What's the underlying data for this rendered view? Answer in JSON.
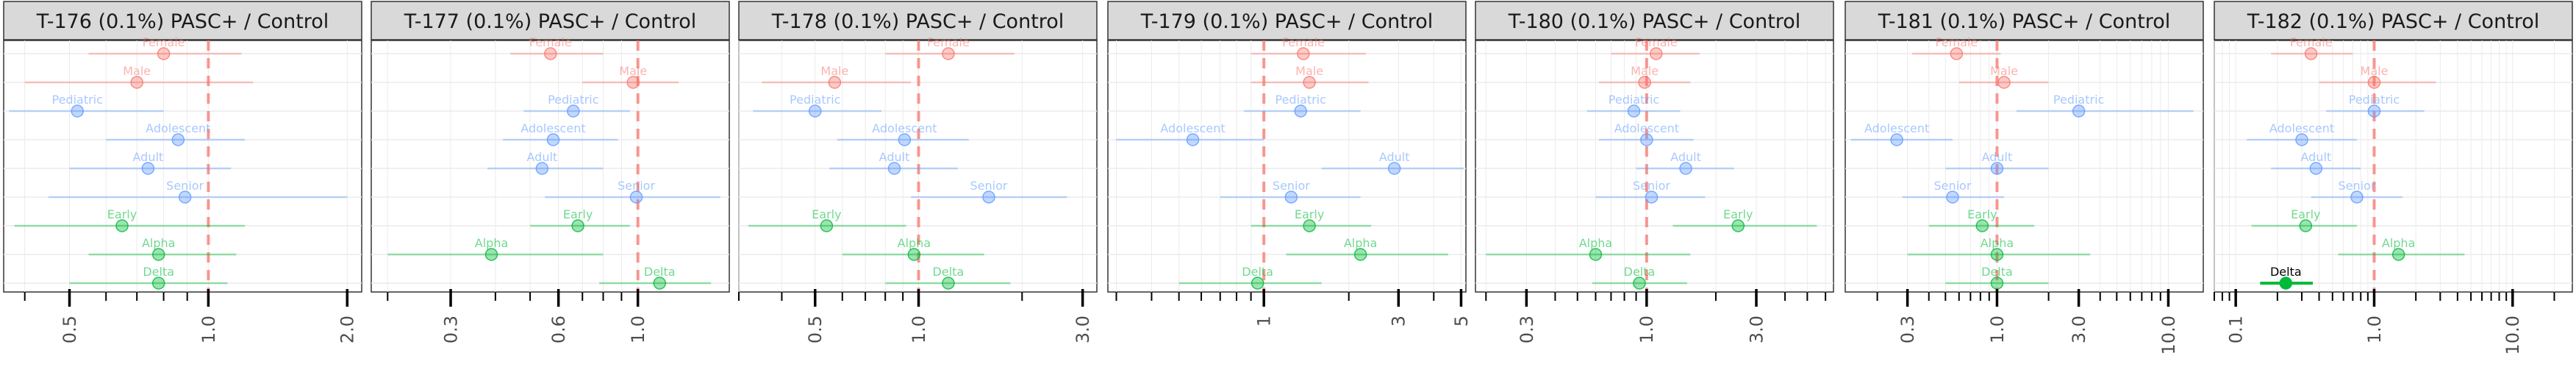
{
  "colors": {
    "strip_fill": "#d9d9d9",
    "strip_border": "#333333",
    "grid": "#ebebeb",
    "axis": "#000000",
    "reference_line": "#f8766d",
    "sex": "#f8766d",
    "age": "#619cff",
    "variant": "#00ba38"
  },
  "chart_data": [
    {
      "type": "forest",
      "title": "T-176 (0.1%) PASC+ / Control",
      "xscale": "log",
      "xlim": [
        0.36,
        2.15
      ],
      "xticks": [
        0.5,
        1.0,
        2.0
      ],
      "xtick_labels": [
        "0.5",
        "1.0",
        "2.0"
      ],
      "reference": 1.0,
      "rows": [
        {
          "label": "Female",
          "group": "sex",
          "est": 0.8,
          "lo": 0.55,
          "hi": 1.18
        },
        {
          "label": "Male",
          "group": "sex",
          "est": 0.7,
          "lo": 0.4,
          "hi": 1.25
        },
        {
          "label": "Pediatric",
          "group": "age",
          "est": 0.52,
          "lo": 0.37,
          "hi": 0.8
        },
        {
          "label": "Adolescent",
          "group": "age",
          "est": 0.86,
          "lo": 0.6,
          "hi": 1.2
        },
        {
          "label": "Adult",
          "group": "age",
          "est": 0.74,
          "lo": 0.5,
          "hi": 1.12
        },
        {
          "label": "Senior",
          "group": "age",
          "est": 0.89,
          "lo": 0.45,
          "hi": 2.0
        },
        {
          "label": "Early",
          "group": "variant",
          "est": 0.65,
          "lo": 0.38,
          "hi": 1.2
        },
        {
          "label": "Alpha",
          "group": "variant",
          "est": 0.78,
          "lo": 0.55,
          "hi": 1.15
        },
        {
          "label": "Delta",
          "group": "variant",
          "est": 0.78,
          "lo": 0.5,
          "hi": 1.1
        }
      ]
    },
    {
      "type": "forest",
      "title": "T-177 (0.1%) PASC+ / Control",
      "xscale": "log",
      "xlim": [
        0.18,
        1.8
      ],
      "xticks": [
        0.3,
        0.6,
        1.0
      ],
      "xtick_labels": [
        "0.3",
        "0.6",
        "1.0"
      ],
      "reference": 1.0,
      "rows": [
        {
          "label": "Female",
          "group": "sex",
          "est": 0.57,
          "lo": 0.44,
          "hi": 0.8
        },
        {
          "label": "Male",
          "group": "sex",
          "est": 0.97,
          "lo": 0.7,
          "hi": 1.3
        },
        {
          "label": "Pediatric",
          "group": "age",
          "est": 0.66,
          "lo": 0.48,
          "hi": 0.95
        },
        {
          "label": "Adolescent",
          "group": "age",
          "est": 0.58,
          "lo": 0.42,
          "hi": 0.88
        },
        {
          "label": "Adult",
          "group": "age",
          "est": 0.54,
          "lo": 0.38,
          "hi": 0.8
        },
        {
          "label": "Senior",
          "group": "age",
          "est": 0.99,
          "lo": 0.55,
          "hi": 1.7
        },
        {
          "label": "Early",
          "group": "variant",
          "est": 0.68,
          "lo": 0.5,
          "hi": 0.95
        },
        {
          "label": "Alpha",
          "group": "variant",
          "est": 0.39,
          "lo": 0.2,
          "hi": 0.8
        },
        {
          "label": "Delta",
          "group": "variant",
          "est": 1.15,
          "lo": 0.78,
          "hi": 1.6
        }
      ]
    },
    {
      "type": "forest",
      "title": "T-178 (0.1%) PASC+ / Control",
      "xscale": "log",
      "xlim": [
        0.3,
        3.3
      ],
      "xticks": [
        0.5,
        1.0,
        3.0
      ],
      "xtick_labels": [
        "0.5",
        "1.0",
        "3.0"
      ],
      "reference": 1.0,
      "rows": [
        {
          "label": "Female",
          "group": "sex",
          "est": 1.22,
          "lo": 0.8,
          "hi": 1.9
        },
        {
          "label": "Male",
          "group": "sex",
          "est": 0.57,
          "lo": 0.35,
          "hi": 0.95
        },
        {
          "label": "Pediatric",
          "group": "age",
          "est": 0.5,
          "lo": 0.33,
          "hi": 0.78
        },
        {
          "label": "Adolescent",
          "group": "age",
          "est": 0.91,
          "lo": 0.58,
          "hi": 1.4
        },
        {
          "label": "Adult",
          "group": "age",
          "est": 0.85,
          "lo": 0.55,
          "hi": 1.3
        },
        {
          "label": "Senior",
          "group": "age",
          "est": 1.6,
          "lo": 0.95,
          "hi": 2.7
        },
        {
          "label": "Early",
          "group": "variant",
          "est": 0.54,
          "lo": 0.32,
          "hi": 0.92
        },
        {
          "label": "Alpha",
          "group": "variant",
          "est": 0.97,
          "lo": 0.6,
          "hi": 1.55
        },
        {
          "label": "Delta",
          "group": "variant",
          "est": 1.22,
          "lo": 0.8,
          "hi": 1.85
        }
      ]
    },
    {
      "type": "forest",
      "title": "T-179 (0.1%) PASC+ / Control",
      "xscale": "log",
      "xlim": [
        0.28,
        5.2
      ],
      "xticks": [
        1,
        3,
        5
      ],
      "xtick_labels": [
        "1",
        "3",
        "5"
      ],
      "reference": 1.0,
      "rows": [
        {
          "label": "Female",
          "group": "sex",
          "est": 1.38,
          "lo": 0.9,
          "hi": 2.3
        },
        {
          "label": "Male",
          "group": "sex",
          "est": 1.45,
          "lo": 0.9,
          "hi": 2.35
        },
        {
          "label": "Pediatric",
          "group": "age",
          "est": 1.35,
          "lo": 0.85,
          "hi": 2.2
        },
        {
          "label": "Adolescent",
          "group": "age",
          "est": 0.56,
          "lo": 0.3,
          "hi": 1.0
        },
        {
          "label": "Adult",
          "group": "age",
          "est": 2.9,
          "lo": 1.6,
          "hi": 5.1
        },
        {
          "label": "Senior",
          "group": "age",
          "est": 1.25,
          "lo": 0.7,
          "hi": 2.2
        },
        {
          "label": "Early",
          "group": "variant",
          "est": 1.45,
          "lo": 0.9,
          "hi": 2.4
        },
        {
          "label": "Alpha",
          "group": "variant",
          "est": 2.2,
          "lo": 1.2,
          "hi": 4.5
        },
        {
          "label": "Delta",
          "group": "variant",
          "est": 0.95,
          "lo": 0.5,
          "hi": 1.6
        }
      ]
    },
    {
      "type": "forest",
      "title": "T-180 (0.1%) PASC+ / Control",
      "xscale": "log",
      "xlim": [
        0.18,
        6.5
      ],
      "xticks": [
        0.3,
        1.0,
        3.0
      ],
      "xtick_labels": [
        "0.3",
        "1.0",
        "3.0"
      ],
      "reference": 1.0,
      "rows": [
        {
          "label": "Female",
          "group": "sex",
          "est": 1.1,
          "lo": 0.7,
          "hi": 1.7
        },
        {
          "label": "Male",
          "group": "sex",
          "est": 0.98,
          "lo": 0.62,
          "hi": 1.55
        },
        {
          "label": "Pediatric",
          "group": "age",
          "est": 0.88,
          "lo": 0.55,
          "hi": 1.4
        },
        {
          "label": "Adolescent",
          "group": "age",
          "est": 1.0,
          "lo": 0.62,
          "hi": 1.6
        },
        {
          "label": "Adult",
          "group": "age",
          "est": 1.48,
          "lo": 0.9,
          "hi": 2.4
        },
        {
          "label": "Senior",
          "group": "age",
          "est": 1.05,
          "lo": 0.6,
          "hi": 1.8
        },
        {
          "label": "Early",
          "group": "variant",
          "est": 2.5,
          "lo": 1.3,
          "hi": 5.5
        },
        {
          "label": "Alpha",
          "group": "variant",
          "est": 0.6,
          "lo": 0.2,
          "hi": 1.55
        },
        {
          "label": "Delta",
          "group": "variant",
          "est": 0.93,
          "lo": 0.58,
          "hi": 1.5
        }
      ]
    },
    {
      "type": "forest",
      "title": "T-181 (0.1%) PASC+ / Control",
      "xscale": "log",
      "xlim": [
        0.13,
        16
      ],
      "xticks": [
        0.3,
        1.0,
        3.0,
        10.0
      ],
      "xtick_labels": [
        "0.3",
        "1.0",
        "3.0",
        "10.0"
      ],
      "reference": 1.0,
      "rows": [
        {
          "label": "Female",
          "group": "sex",
          "est": 0.58,
          "lo": 0.32,
          "hi": 1.05
        },
        {
          "label": "Male",
          "group": "sex",
          "est": 1.1,
          "lo": 0.6,
          "hi": 2.0
        },
        {
          "label": "Pediatric",
          "group": "age",
          "est": 3.0,
          "lo": 1.3,
          "hi": 14.0
        },
        {
          "label": "Adolescent",
          "group": "age",
          "est": 0.26,
          "lo": 0.14,
          "hi": 0.55
        },
        {
          "label": "Adult",
          "group": "age",
          "est": 1.0,
          "lo": 0.5,
          "hi": 2.0
        },
        {
          "label": "Senior",
          "group": "age",
          "est": 0.55,
          "lo": 0.28,
          "hi": 1.1
        },
        {
          "label": "Early",
          "group": "variant",
          "est": 0.82,
          "lo": 0.4,
          "hi": 1.65
        },
        {
          "label": "Alpha",
          "group": "variant",
          "est": 1.0,
          "lo": 0.3,
          "hi": 3.5
        },
        {
          "label": "Delta",
          "group": "variant",
          "est": 1.0,
          "lo": 0.5,
          "hi": 2.0
        }
      ]
    },
    {
      "type": "forest",
      "title": "T-182 (0.1%) PASC+ / Control",
      "xscale": "log",
      "xlim": [
        0.07,
        27
      ],
      "xticks": [
        0.1,
        1.0,
        10.0
      ],
      "xtick_labels": [
        "0.1",
        "1.0",
        "10.0"
      ],
      "reference": 1.0,
      "rows": [
        {
          "label": "Female",
          "group": "sex",
          "est": 0.35,
          "lo": 0.18,
          "hi": 0.7
        },
        {
          "label": "Male",
          "group": "sex",
          "est": 1.0,
          "lo": 0.4,
          "hi": 2.8
        },
        {
          "label": "Pediatric",
          "group": "age",
          "est": 1.0,
          "lo": 0.45,
          "hi": 2.3
        },
        {
          "label": "Adolescent",
          "group": "age",
          "est": 0.3,
          "lo": 0.12,
          "hi": 0.75
        },
        {
          "label": "Adult",
          "group": "age",
          "est": 0.38,
          "lo": 0.18,
          "hi": 0.8
        },
        {
          "label": "Senior",
          "group": "age",
          "est": 0.75,
          "lo": 0.35,
          "hi": 1.6
        },
        {
          "label": "Early",
          "group": "variant",
          "est": 0.32,
          "lo": 0.13,
          "hi": 0.75
        },
        {
          "label": "Alpha",
          "group": "variant",
          "est": 1.5,
          "lo": 0.55,
          "hi": 4.5
        },
        {
          "label": "Delta",
          "group": "variant",
          "est": 0.23,
          "lo": 0.15,
          "hi": 0.36,
          "highlight": true
        }
      ]
    }
  ]
}
